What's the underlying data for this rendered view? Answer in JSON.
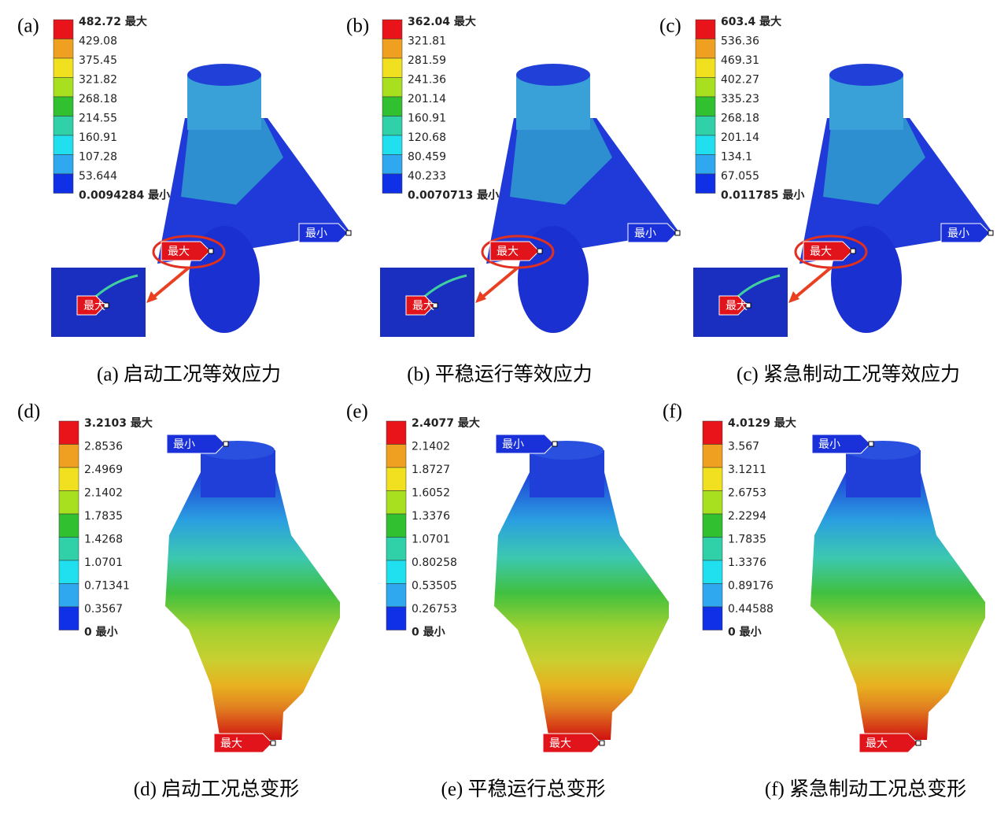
{
  "panels": [
    {
      "letter": "(a)",
      "caption": "(a) 启动工况等效应力",
      "legend": [
        "482.72 最大",
        "429.08",
        "375.45",
        "321.82",
        "268.18",
        "214.55",
        "160.91",
        "107.28",
        "53.644",
        "0.0094284 最小"
      ],
      "max_tag": "最大",
      "min_tag": "最小",
      "inset_tag": "最大"
    },
    {
      "letter": "(b)",
      "caption": "(b) 平稳运行等效应力",
      "legend": [
        "362.04 最大",
        "321.81",
        "281.59",
        "241.36",
        "201.14",
        "160.91",
        "120.68",
        "80.459",
        "40.233",
        "0.0070713 最小"
      ],
      "max_tag": "最大",
      "min_tag": "最小",
      "inset_tag": "最大"
    },
    {
      "letter": "(c)",
      "caption": "(c) 紧急制动工况等效应力",
      "legend": [
        "603.4 最大",
        "536.36",
        "469.31",
        "402.27",
        "335.23",
        "268.18",
        "201.14",
        "134.1",
        "67.055",
        "0.011785 最小"
      ],
      "max_tag": "最大",
      "min_tag": "最小",
      "inset_tag": "最大"
    },
    {
      "letter": "(d)",
      "caption": "(d) 启动工况总变形",
      "legend": [
        "3.2103 最大",
        "2.8536",
        "2.4969",
        "2.1402",
        "1.7835",
        "1.4268",
        "1.0701",
        "0.71341",
        "0.3567",
        "0 最小"
      ],
      "max_tag": "最大",
      "min_tag": "最小"
    },
    {
      "letter": "(e)",
      "caption": "(e) 平稳运行总变形",
      "legend": [
        "2.4077 最大",
        "2.1402",
        "1.8727",
        "1.6052",
        "1.3376",
        "1.0701",
        "0.80258",
        "0.53505",
        "0.26753",
        "0 最小"
      ],
      "max_tag": "最大",
      "min_tag": "最小"
    },
    {
      "letter": "(f)",
      "caption": "(f) 紧急制动工况总变形",
      "legend": [
        "4.0129 最大",
        "3.567",
        "3.1211",
        "2.6753",
        "2.2294",
        "1.7835",
        "1.3376",
        "0.89176",
        "0.44588",
        "0 最小"
      ],
      "max_tag": "最大",
      "min_tag": "最小"
    }
  ]
}
